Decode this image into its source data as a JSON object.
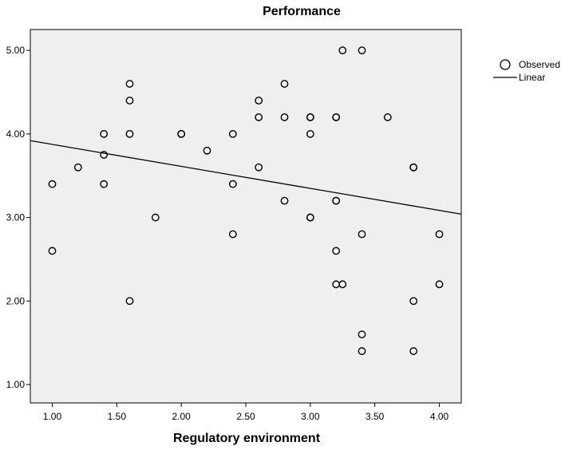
{
  "chart_data": {
    "type": "scatter",
    "title": "Performance",
    "xlabel": "Regulatory environment",
    "ylabel": "",
    "xlim": [
      0.83,
      4.17
    ],
    "ylim": [
      0.78,
      5.25
    ],
    "x_ticks": [
      "1.00",
      "1.50",
      "2.00",
      "2.50",
      "3.00",
      "3.50",
      "4.00"
    ],
    "y_ticks": [
      "1.00",
      "2.00",
      "3.00",
      "4.00",
      "5.00"
    ],
    "grid": false,
    "plot_background": "#efefef",
    "legend": {
      "placement": "right",
      "entries": [
        {
          "label": "Observed",
          "marker": "circle"
        },
        {
          "label": "Linear",
          "marker": "line"
        }
      ]
    },
    "series": [
      {
        "name": "Observed",
        "points": [
          [
            1.0,
            3.4
          ],
          [
            1.0,
            2.6
          ],
          [
            1.2,
            3.6
          ],
          [
            1.4,
            4.0
          ],
          [
            1.4,
            3.75
          ],
          [
            1.4,
            3.4
          ],
          [
            1.6,
            4.6
          ],
          [
            1.6,
            4.4
          ],
          [
            1.6,
            4.0
          ],
          [
            1.6,
            2.0
          ],
          [
            1.8,
            3.0
          ],
          [
            2.0,
            4.0
          ],
          [
            2.0,
            4.0
          ],
          [
            2.2,
            3.8
          ],
          [
            2.4,
            4.0
          ],
          [
            2.4,
            3.4
          ],
          [
            2.4,
            2.8
          ],
          [
            2.6,
            4.4
          ],
          [
            2.6,
            4.2
          ],
          [
            2.6,
            3.6
          ],
          [
            2.8,
            4.6
          ],
          [
            2.8,
            4.2
          ],
          [
            2.8,
            3.2
          ],
          [
            3.0,
            4.2
          ],
          [
            3.0,
            4.2
          ],
          [
            3.0,
            4.0
          ],
          [
            3.0,
            3.0
          ],
          [
            3.0,
            3.0
          ],
          [
            3.2,
            4.2
          ],
          [
            3.2,
            4.2
          ],
          [
            3.2,
            3.2
          ],
          [
            3.2,
            3.2
          ],
          [
            3.2,
            2.6
          ],
          [
            3.2,
            2.2
          ],
          [
            3.25,
            5.0
          ],
          [
            3.25,
            2.2
          ],
          [
            3.4,
            5.0
          ],
          [
            3.4,
            2.8
          ],
          [
            3.4,
            1.6
          ],
          [
            3.4,
            1.4
          ],
          [
            3.6,
            4.2
          ],
          [
            3.8,
            3.6
          ],
          [
            3.8,
            3.6
          ],
          [
            3.8,
            2.0
          ],
          [
            3.8,
            1.4
          ],
          [
            4.0,
            2.8
          ],
          [
            4.0,
            2.2
          ]
        ]
      },
      {
        "name": "Linear",
        "fit": {
          "x": [
            0.83,
            4.17
          ],
          "y": [
            3.92,
            3.04
          ]
        }
      }
    ]
  }
}
